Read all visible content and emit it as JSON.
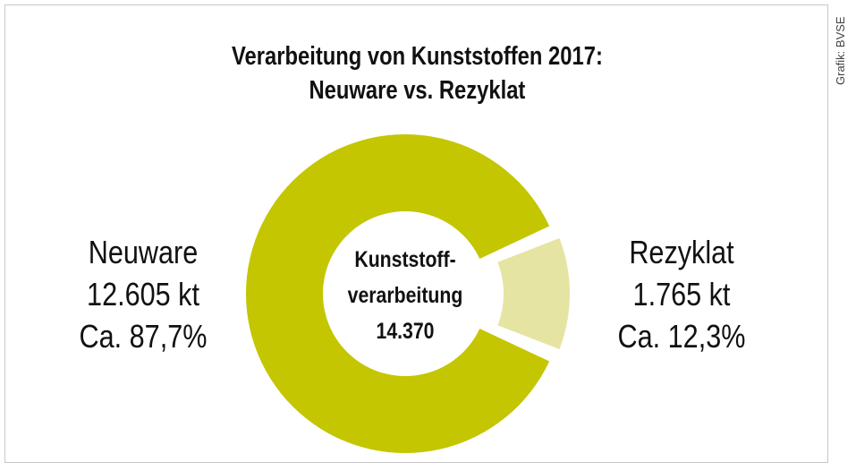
{
  "chart_data": {
    "type": "pie",
    "title": "Verarbeitung von Kunststoffen 2017:",
    "subtitle": "Neuware vs. Rezyklat",
    "center_label": [
      "Kunststoff-",
      "verarbeitung",
      "14.370"
    ],
    "slices": [
      {
        "name": "Neuware",
        "value": 12605,
        "value_label": "12.605 kt",
        "percent_label": "Ca. 87,7%",
        "color": "#c3c600"
      },
      {
        "name": "Rezyklat",
        "value": 1765,
        "value_label": "1.765 kt",
        "percent_label": "Ca. 12,3%",
        "color": "#e5e4a2"
      }
    ],
    "total": 14370,
    "unit": "kt"
  },
  "credit": "Grafik: BVSE"
}
